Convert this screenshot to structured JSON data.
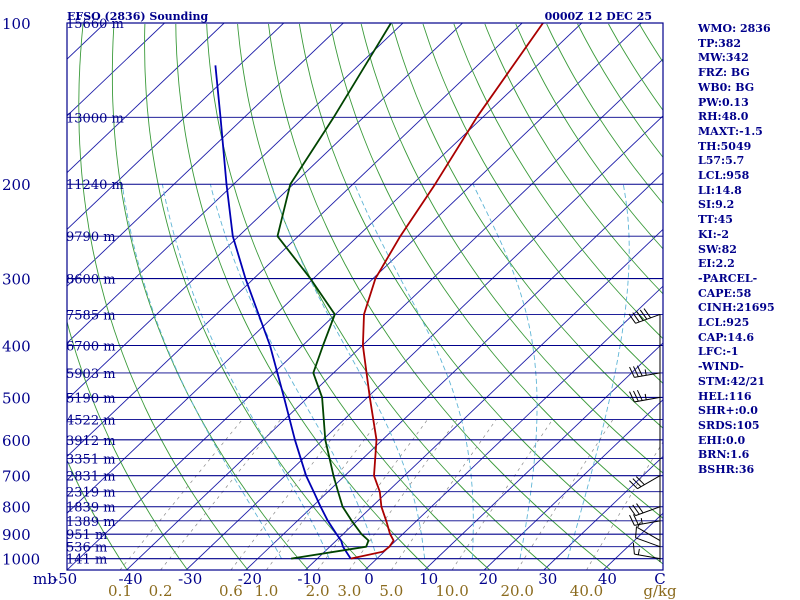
{
  "header": {
    "title": "EFSO (2836) Sounding",
    "valid_time": "0000Z 12 DEC 25"
  },
  "colors": {
    "frame": "#00008b",
    "isobar": "#00008b",
    "isotherm": "#1e1ea8",
    "dry_adiabat": "#3a9a3a",
    "moist_adiabat": "#5fb5d6",
    "mixing_ratio": "#8a8a8a",
    "temperature": "#aa0000",
    "dewpoint": "#004400",
    "parcel": "#0000b4",
    "mixing_label": "#8b6b1e",
    "wind": "#000000"
  },
  "chart_data": {
    "type": "skew-t log-p",
    "p_bottom": 1050,
    "p_top": 100,
    "t_min": -50,
    "t_max": 50,
    "pressure_axis": [
      {
        "p": 100,
        "label": "100"
      },
      {
        "p": 200,
        "label": "200"
      },
      {
        "p": 300,
        "label": "300"
      },
      {
        "p": 400,
        "label": "400"
      },
      {
        "p": 500,
        "label": "500"
      },
      {
        "p": 600,
        "label": "600"
      },
      {
        "p": 700,
        "label": "700"
      },
      {
        "p": 800,
        "label": "800"
      },
      {
        "p": 900,
        "label": "900"
      },
      {
        "p": 1000,
        "label": "1000"
      }
    ],
    "pressure_unit": "mb",
    "height_labels": [
      {
        "p": 100,
        "label": "15660 m"
      },
      {
        "p": 150,
        "label": "13000 m"
      },
      {
        "p": 200,
        "label": "11240 m"
      },
      {
        "p": 250,
        "label": "9790 m"
      },
      {
        "p": 300,
        "label": "8600 m"
      },
      {
        "p": 350,
        "label": "7585 m"
      },
      {
        "p": 400,
        "label": "6700 m"
      },
      {
        "p": 450,
        "label": "5903 m"
      },
      {
        "p": 500,
        "label": "5190 m"
      },
      {
        "p": 550,
        "label": "4522 m"
      },
      {
        "p": 600,
        "label": "3912 m"
      },
      {
        "p": 650,
        "label": "3351 m"
      },
      {
        "p": 700,
        "label": "2831 m"
      },
      {
        "p": 750,
        "label": "2319 m"
      },
      {
        "p": 800,
        "label": "1839 m"
      },
      {
        "p": 850,
        "label": "1389 m"
      },
      {
        "p": 900,
        "label": "951 m"
      },
      {
        "p": 950,
        "label": "536 m"
      },
      {
        "p": 1000,
        "label": "141 m"
      }
    ],
    "temperature_axis": [
      {
        "t": -40,
        "label": "-40"
      },
      {
        "t": -30,
        "label": "-30"
      },
      {
        "t": -20,
        "label": "-20"
      },
      {
        "t": -10,
        "label": "-10"
      },
      {
        "t": 0,
        "label": "0"
      },
      {
        "t": 10,
        "label": "10"
      },
      {
        "t": 20,
        "label": "20"
      },
      {
        "t": 30,
        "label": "30"
      },
      {
        "t": 40,
        "label": "40"
      }
    ],
    "temperature_axis_start": "-50",
    "temperature_axis_end": "C",
    "isotherms": [
      -160,
      -150,
      -140,
      -130,
      -120,
      -110,
      -100,
      -90,
      -80,
      -70,
      -60,
      -50,
      -40,
      -30,
      -20,
      -10,
      0,
      10,
      20,
      30,
      40
    ],
    "dry_adiabats_theta_k": [
      230,
      240,
      250,
      260,
      270,
      280,
      290,
      300,
      310,
      320,
      330,
      340,
      350,
      360,
      370,
      380,
      390,
      400,
      410,
      420,
      430,
      440,
      450,
      460,
      470,
      480,
      490,
      500,
      510,
      520,
      530,
      540,
      550,
      560,
      570,
      580,
      590,
      600
    ],
    "moist_adiabats_c": [
      -16,
      -8,
      0,
      8,
      16,
      24,
      32
    ],
    "mixing_ratio_lines": [
      {
        "w": 0.1,
        "label": "0.1"
      },
      {
        "w": 0.2,
        "label": "0.2"
      },
      {
        "w": 0.6,
        "label": "0.6"
      },
      {
        "w": 1.0,
        "label": "1.0"
      },
      {
        "w": 2.0,
        "label": "2.0"
      },
      {
        "w": 3.0,
        "label": "3.0"
      },
      {
        "w": 5.0,
        "label": "5.0"
      },
      {
        "w": 10.0,
        "label": "10.0"
      },
      {
        "w": 20.0,
        "label": "20.0"
      },
      {
        "w": 40.0,
        "label": "40.0"
      }
    ],
    "mixing_ratio_unit": "g/kg",
    "temperature_profile": [
      [
        1000,
        -4.4
      ],
      [
        970,
        -0.2
      ],
      [
        950,
        0.0
      ],
      [
        925,
        -0.4
      ],
      [
        900,
        -2.1
      ],
      [
        850,
        -5.1
      ],
      [
        800,
        -8.4
      ],
      [
        750,
        -11.3
      ],
      [
        700,
        -15.1
      ],
      [
        600,
        -21.0
      ],
      [
        500,
        -29.6
      ],
      [
        400,
        -39.9
      ],
      [
        350,
        -45.2
      ],
      [
        300,
        -49.6
      ],
      [
        250,
        -52.9
      ],
      [
        200,
        -56.2
      ],
      [
        150,
        -61.0
      ],
      [
        100,
        -66.5
      ]
    ],
    "dewpoint_profile": [
      [
        1000,
        -14.4
      ],
      [
        950,
        -3.9
      ],
      [
        925,
        -4.6
      ],
      [
        900,
        -6.9
      ],
      [
        850,
        -10.9
      ],
      [
        800,
        -14.9
      ],
      [
        750,
        -18.3
      ],
      [
        700,
        -21.9
      ],
      [
        600,
        -29.6
      ],
      [
        500,
        -37.6
      ],
      [
        450,
        -43.4
      ],
      [
        400,
        -46.6
      ],
      [
        350,
        -50.1
      ],
      [
        300,
        -60.5
      ],
      [
        250,
        -73.5
      ],
      [
        200,
        -80.5
      ],
      [
        150,
        -85.0
      ],
      [
        100,
        -92.0
      ]
    ],
    "parcel_profile": [
      [
        1000,
        -4.4
      ],
      [
        950,
        -7.8
      ],
      [
        925,
        -9.2
      ],
      [
        900,
        -11.1
      ],
      [
        850,
        -14.9
      ],
      [
        800,
        -18.6
      ],
      [
        750,
        -22.4
      ],
      [
        700,
        -26.5
      ],
      [
        600,
        -34.7
      ],
      [
        500,
        -44.0
      ],
      [
        400,
        -55.5
      ],
      [
        300,
        -71.4
      ],
      [
        250,
        -81.0
      ],
      [
        200,
        -91.2
      ],
      [
        150,
        -104.0
      ],
      [
        120,
        -114.0
      ]
    ],
    "wind_barbs": [
      {
        "p": 1000,
        "dir": 280,
        "kt": 15
      },
      {
        "p": 950,
        "dir": 290,
        "kt": 10
      },
      {
        "p": 925,
        "dir": 300,
        "kt": 5
      },
      {
        "p": 850,
        "dir": 260,
        "kt": 25
      },
      {
        "p": 800,
        "dir": 250,
        "kt": 30
      },
      {
        "p": 700,
        "dir": 240,
        "kt": 30
      },
      {
        "p": 500,
        "dir": 260,
        "kt": 35
      },
      {
        "p": 450,
        "dir": 260,
        "kt": 35
      },
      {
        "p": 350,
        "dir": 250,
        "kt": 50
      }
    ]
  },
  "indices": [
    "WMO: 2836",
    "TP:382",
    "MW:342",
    "FRZ: BG",
    "WB0: BG",
    "PW:0.13",
    "RH:48.0",
    "MAXT:-1.5",
    "TH:5049",
    "L57:5.7",
    "LCL:958",
    "LI:14.8",
    "SI:9.2",
    "TT:45",
    "KI:-2",
    "SW:82",
    "EI:2.2",
    "-PARCEL-",
    "CAPE:58",
    "CINH:21695",
    "LCL:925",
    "CAP:14.6",
    "LFC:-1",
    "-WIND-",
    "STM:42/21",
    "HEL:116",
    "SHR+:0.0",
    "SRDS:105",
    "EHI:0.0",
    "BRN:1.6",
    "BSHR:36"
  ]
}
